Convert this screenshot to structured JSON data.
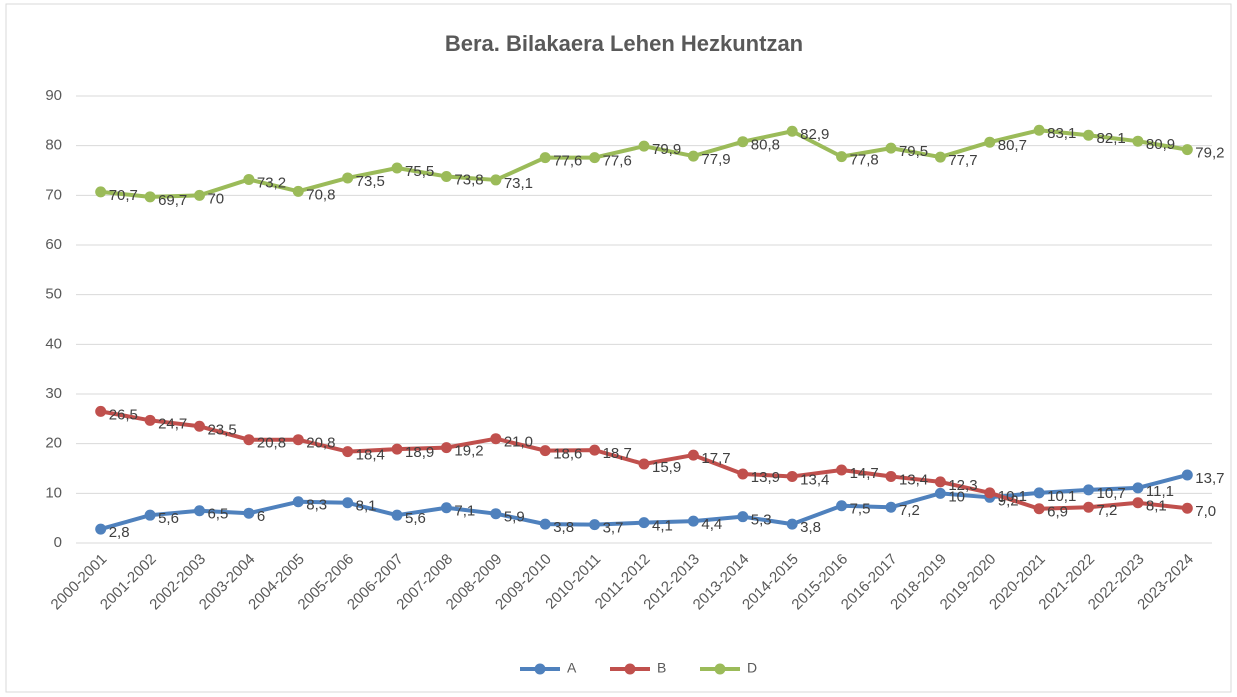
{
  "chart_data": {
    "type": "line",
    "title": "Bera. Bilakaera Lehen Hezkuntzan",
    "categories": [
      "2000-2001",
      "2001-2002",
      "2002-2003",
      "2003-2004",
      "2004-2005",
      "2005-2006",
      "2006-2007",
      "2007-2008",
      "2008-2009",
      "2009-2010",
      "2010-2011",
      "2011-2012",
      "2012-2013",
      "2013-2014",
      "2014-2015",
      "2015-2016",
      "2016-2017",
      "2018-2019",
      "2019-2020",
      "2020-2021",
      "2021-2022",
      "2022-2023",
      "2023-2024"
    ],
    "series": [
      {
        "name": "A",
        "color": "#4f81bd",
        "values": [
          2.8,
          5.6,
          6.5,
          6,
          8.3,
          8.1,
          5.6,
          7.1,
          5.9,
          3.8,
          3.7,
          4.1,
          4.4,
          5.3,
          3.8,
          7.5,
          7.2,
          10,
          9.2,
          10.1,
          10.7,
          11.1,
          13.7
        ],
        "value_labels": [
          "2,8",
          "5,6",
          "6,5",
          "6",
          "8,3",
          "8,1",
          "5,6",
          "7,1",
          "5,9",
          "3,8",
          "3,7",
          "4,1",
          "4,4",
          "5,3",
          "3,8",
          "7,5",
          "7,2",
          "10",
          "9,2",
          "10,1",
          "10,7",
          "11,1",
          "13,7"
        ]
      },
      {
        "name": "B",
        "color": "#c0504d",
        "values": [
          26.5,
          24.7,
          23.5,
          20.8,
          20.8,
          18.4,
          18.9,
          19.2,
          21.0,
          18.6,
          18.7,
          15.9,
          17.7,
          13.9,
          13.4,
          14.7,
          13.4,
          12.3,
          10.1,
          6.9,
          7.2,
          8.1,
          7.0
        ],
        "value_labels": [
          "26,5",
          "24,7",
          "23,5",
          "20,8",
          "20,8",
          "18,4",
          "18,9",
          "19,2",
          "21,0",
          "18,6",
          "18,7",
          "15,9",
          "17,7",
          "13,9",
          "13,4",
          "14,7",
          "13,4",
          "12,3",
          "10,1",
          "6,9",
          "7,2",
          "8,1",
          "7,0"
        ]
      },
      {
        "name": "D",
        "color": "#9bbb59",
        "values": [
          70.7,
          69.7,
          70,
          73.2,
          70.8,
          73.5,
          75.5,
          73.8,
          73.1,
          77.6,
          77.6,
          79.9,
          77.9,
          80.8,
          82.9,
          77.8,
          79.5,
          77.7,
          80.7,
          83.1,
          82.1,
          80.9,
          79.2
        ],
        "value_labels": [
          "70,7",
          "69,7",
          "70",
          "73,2",
          "70,8",
          "73,5",
          "75,5",
          "73,8",
          "73,1",
          "77,6",
          "77,6",
          "79,9",
          "77,9",
          "80,8",
          "82,9",
          "77,8",
          "79,5",
          "77,7",
          "80,7",
          "83,1",
          "82,1",
          "80,9",
          "79,2"
        ]
      }
    ],
    "ylim": [
      0,
      90
    ],
    "yticks": [
      0,
      10,
      20,
      30,
      40,
      50,
      60,
      70,
      80,
      90
    ],
    "grid": true,
    "legend": "bottom"
  }
}
